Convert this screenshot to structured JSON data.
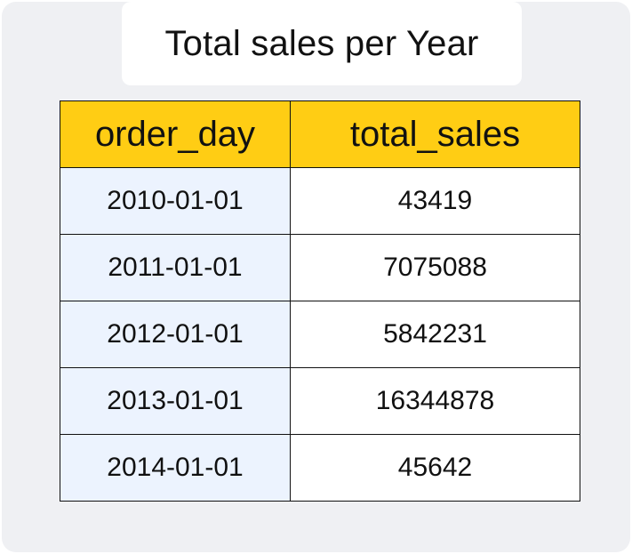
{
  "title": "Total sales per Year",
  "table": {
    "headers": [
      "order_day",
      "total_sales"
    ],
    "rows": [
      [
        "2010-01-01",
        "43419"
      ],
      [
        "2011-01-01",
        "7075088"
      ],
      [
        "2012-01-01",
        "5842231"
      ],
      [
        "2013-01-01",
        "16344878"
      ],
      [
        "2014-01-01",
        "45642"
      ]
    ]
  },
  "chart_data": {
    "type": "table",
    "title": "Total sales per Year",
    "columns": [
      "order_day",
      "total_sales"
    ],
    "rows": [
      [
        "2010-01-01",
        43419
      ],
      [
        "2011-01-01",
        7075088
      ],
      [
        "2012-01-01",
        5842231
      ],
      [
        "2013-01-01",
        16344878
      ],
      [
        "2014-01-01",
        45642
      ]
    ]
  },
  "colors": {
    "background": "#eff0f3",
    "header": "#ffcd14",
    "date_column": "#ecf3fe",
    "cell": "#ffffff",
    "border": "#111111"
  }
}
